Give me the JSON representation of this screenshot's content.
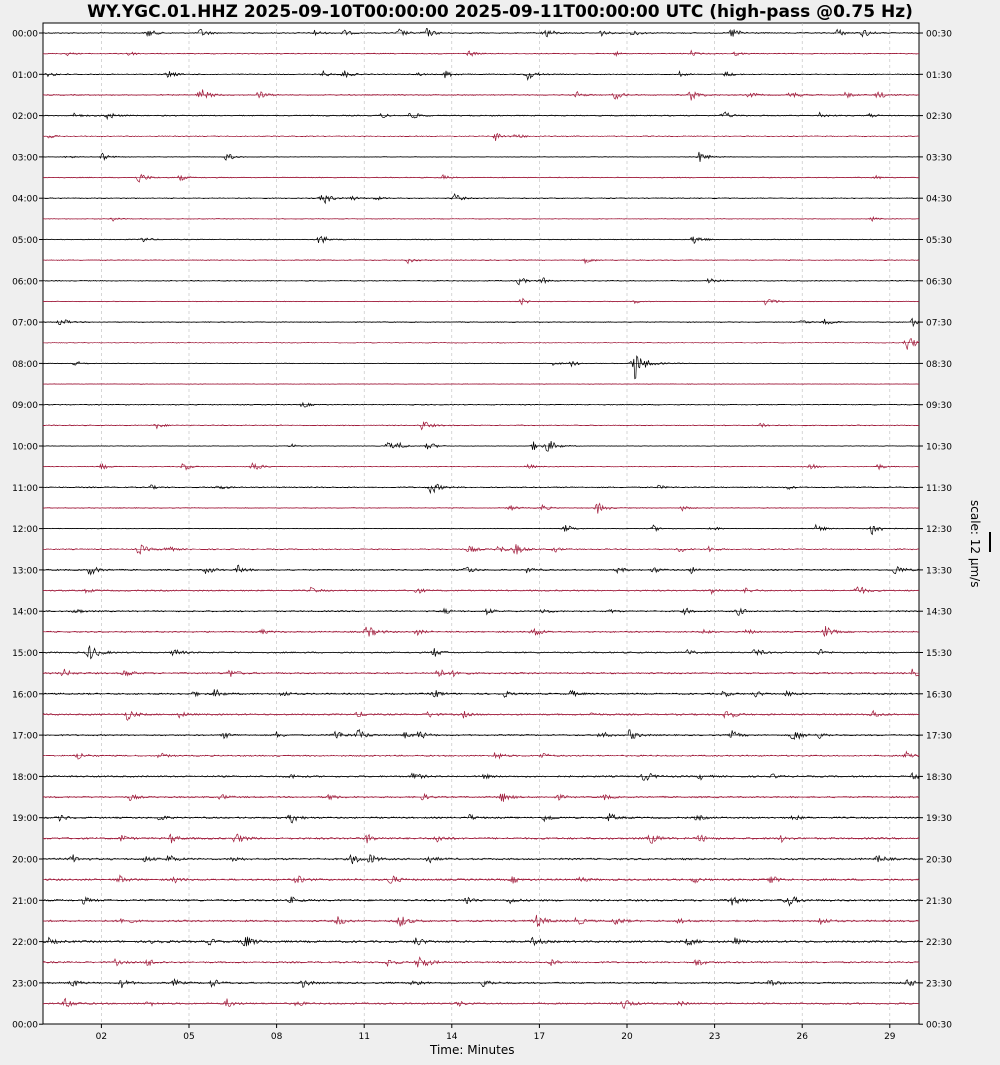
{
  "chart_data": {
    "type": "line",
    "title": "WY.YGC.01.HHZ 2025-09-10T00:00:00 2025-09-11T00:00:00 UTC (high-pass @0.75 Hz)",
    "xlabel": "Time: Minutes",
    "scale_label": "scale: 12 μm/s",
    "xlim": [
      0,
      30
    ],
    "x_ticks": [
      "02",
      "05",
      "08",
      "11",
      "14",
      "17",
      "20",
      "23",
      "26",
      "29"
    ],
    "x_tick_values": [
      2,
      5,
      8,
      11,
      14,
      17,
      20,
      23,
      26,
      29
    ],
    "grid": "vertical-dashed",
    "colors": {
      "trace_a": "#000000",
      "trace_b": "#a01c3c",
      "grid": "#bbbbbb"
    },
    "left_labels": [
      "00:00",
      "01:00",
      "02:00",
      "03:00",
      "04:00",
      "05:00",
      "06:00",
      "07:00",
      "08:00",
      "09:00",
      "10:00",
      "11:00",
      "12:00",
      "13:00",
      "14:00",
      "15:00",
      "16:00",
      "17:00",
      "18:00",
      "19:00",
      "20:00",
      "21:00",
      "22:00",
      "23:00",
      "00:00"
    ],
    "right_labels": [
      "00:30",
      "01:30",
      "02:30",
      "03:30",
      "04:30",
      "05:30",
      "06:30",
      "07:30",
      "08:30",
      "09:30",
      "10:30",
      "11:30",
      "12:30",
      "13:30",
      "14:30",
      "15:30",
      "16:30",
      "17:30",
      "18:30",
      "19:30",
      "20:30",
      "21:30",
      "22:30",
      "23:30",
      "00:30"
    ],
    "rows": 48,
    "noise_level": [
      0.25,
      0.2,
      0.2,
      0.25,
      0.25,
      0.2,
      0.15,
      0.2,
      0.2,
      0.15,
      0.2,
      0.2,
      0.2,
      0.15,
      0.2,
      0.15,
      0.15,
      0.15,
      0.2,
      0.2,
      0.15,
      0.15,
      0.25,
      0.2,
      0.15,
      0.25,
      0.3,
      0.3,
      0.3,
      0.3,
      0.3,
      0.35,
      0.35,
      0.35,
      0.3,
      0.3,
      0.35,
      0.35,
      0.35,
      0.4,
      0.4,
      0.4,
      0.4,
      0.4,
      0.45,
      0.35,
      0.35,
      0.35
    ],
    "events": [
      [
        [
          3.6,
          2
        ],
        [
          5.4,
          2
        ],
        [
          9.3,
          1.5
        ],
        [
          10.3,
          1.5
        ],
        [
          12.2,
          2
        ],
        [
          13.1,
          2.5
        ],
        [
          17.2,
          2.5
        ],
        [
          19.1,
          1.5
        ],
        [
          20.2,
          1.5
        ],
        [
          23.6,
          2.5
        ],
        [
          27.2,
          2
        ],
        [
          28.1,
          2
        ]
      ],
      [
        [
          0.8,
          1
        ],
        [
          2.9,
          1.5
        ],
        [
          14.6,
          1.5
        ],
        [
          19.6,
          1
        ],
        [
          22.2,
          1.2
        ],
        [
          23.7,
          1
        ]
      ],
      [
        [
          0.2,
          1.5
        ],
        [
          4.3,
          2
        ],
        [
          9.6,
          1.5
        ],
        [
          10.3,
          2
        ],
        [
          12.8,
          1
        ],
        [
          13.8,
          2
        ],
        [
          16.6,
          2.5
        ],
        [
          21.8,
          1.2
        ],
        [
          23.4,
          1.5
        ]
      ],
      [
        [
          5.4,
          3
        ],
        [
          7.4,
          2
        ],
        [
          18.3,
          1.5
        ],
        [
          19.6,
          2
        ],
        [
          22.2,
          2.5
        ],
        [
          24.2,
          1.5
        ],
        [
          25.6,
          2
        ],
        [
          27.5,
          1.5
        ],
        [
          28.6,
          2
        ]
      ],
      [
        [
          1.1,
          1.2
        ],
        [
          2.2,
          2
        ],
        [
          11.6,
          1.2
        ],
        [
          12.6,
          2
        ],
        [
          23.3,
          2
        ],
        [
          26.6,
          1.5
        ],
        [
          28.3,
          1
        ]
      ],
      [
        [
          0.2,
          1
        ],
        [
          15.5,
          2
        ],
        [
          16.2,
          1.5
        ]
      ],
      [
        [
          0.8,
          1
        ],
        [
          2.0,
          2
        ],
        [
          6.3,
          2
        ],
        [
          22.5,
          2.5
        ]
      ],
      [
        [
          3.3,
          2.5
        ],
        [
          4.7,
          1.5
        ],
        [
          13.7,
          1.2
        ],
        [
          28.5,
          1
        ]
      ],
      [
        [
          9.6,
          3
        ],
        [
          10.6,
          1.2
        ],
        [
          11.4,
          1
        ],
        [
          14.1,
          2
        ]
      ],
      [
        [
          2.4,
          1.2
        ],
        [
          28.4,
          1
        ]
      ],
      [
        [
          3.4,
          1.5
        ],
        [
          9.5,
          2.5
        ],
        [
          22.3,
          2.5
        ]
      ],
      [
        [
          12.5,
          1.5
        ],
        [
          18.6,
          1.5
        ]
      ],
      [
        [
          16.3,
          2
        ],
        [
          17.1,
          1.5
        ],
        [
          22.8,
          2
        ]
      ],
      [
        [
          16.4,
          1.5
        ],
        [
          20.3,
          1
        ],
        [
          24.8,
          2.5
        ]
      ],
      [
        [
          0.6,
          2
        ],
        [
          26.0,
          1.2
        ],
        [
          26.8,
          2
        ],
        [
          29.8,
          2
        ]
      ],
      [
        [
          29.6,
          3.5
        ]
      ],
      [
        [
          1.1,
          1.5
        ],
        [
          17.5,
          1.2
        ],
        [
          18.1,
          1.5
        ],
        [
          20.3,
          5
        ]
      ],
      [],
      [
        [
          8.9,
          1.5
        ]
      ],
      [
        [
          3.9,
          1.5
        ],
        [
          13.0,
          2.5
        ],
        [
          24.6,
          1.5
        ]
      ],
      [
        [
          8.5,
          1
        ],
        [
          11.8,
          2
        ],
        [
          12.2,
          1.5
        ],
        [
          13.2,
          2
        ],
        [
          17.3,
          3
        ],
        [
          16.8,
          2
        ]
      ],
      [
        [
          2.0,
          1.5
        ],
        [
          4.8,
          2
        ],
        [
          7.2,
          2.5
        ],
        [
          16.6,
          1.5
        ],
        [
          26.3,
          1.5
        ],
        [
          28.6,
          1.5
        ]
      ],
      [
        [
          3.7,
          1
        ],
        [
          6.0,
          1.5
        ],
        [
          13.3,
          3
        ],
        [
          21.1,
          1
        ],
        [
          25.5,
          1
        ]
      ],
      [
        [
          16.0,
          1.5
        ],
        [
          17.1,
          1.5
        ],
        [
          19.0,
          2.5
        ],
        [
          21.9,
          1.2
        ]
      ],
      [
        [
          17.9,
          2
        ],
        [
          20.9,
          1.5
        ],
        [
          22.9,
          1.5
        ],
        [
          26.5,
          2
        ],
        [
          28.4,
          3
        ]
      ],
      [
        [
          3.3,
          2.5
        ],
        [
          4.2,
          2
        ],
        [
          14.6,
          2
        ],
        [
          15.6,
          2
        ],
        [
          16.2,
          2.5
        ],
        [
          17.5,
          1.5
        ],
        [
          21.8,
          1.5
        ],
        [
          22.8,
          1.5
        ]
      ],
      [
        [
          1.6,
          2.5
        ],
        [
          5.6,
          2
        ],
        [
          6.7,
          2
        ],
        [
          14.5,
          2
        ],
        [
          16.6,
          1.5
        ],
        [
          19.7,
          1.5
        ],
        [
          20.9,
          1.5
        ],
        [
          22.2,
          1.5
        ],
        [
          29.2,
          2.5
        ]
      ],
      [
        [
          1.5,
          1
        ],
        [
          9.2,
          1.5
        ],
        [
          12.8,
          1.5
        ],
        [
          22.9,
          1.5
        ],
        [
          24.1,
          1.5
        ],
        [
          27.9,
          2.5
        ]
      ],
      [
        [
          1.1,
          1.5
        ],
        [
          13.7,
          1.5
        ],
        [
          15.2,
          1.5
        ],
        [
          17.1,
          1.5
        ],
        [
          19.4,
          1
        ],
        [
          22.0,
          1.5
        ],
        [
          23.8,
          2
        ]
      ],
      [
        [
          7.5,
          1.2
        ],
        [
          11.1,
          3
        ],
        [
          12.8,
          1.5
        ],
        [
          16.8,
          2.5
        ],
        [
          22.6,
          1.5
        ],
        [
          24.1,
          1.5
        ],
        [
          26.8,
          2.5
        ]
      ],
      [
        [
          1.6,
          3.5
        ],
        [
          4.5,
          2
        ],
        [
          13.4,
          2
        ],
        [
          22.1,
          1.5
        ],
        [
          24.4,
          2
        ],
        [
          26.6,
          1.5
        ]
      ],
      [
        [
          0.7,
          2
        ],
        [
          2.8,
          2
        ],
        [
          6.4,
          2
        ],
        [
          13.5,
          2.5
        ],
        [
          14.1,
          1.5
        ],
        [
          29.8,
          2
        ]
      ],
      [
        [
          5.1,
          1.5
        ],
        [
          5.9,
          2
        ],
        [
          8.2,
          1.5
        ],
        [
          13.4,
          2
        ],
        [
          15.8,
          1.5
        ],
        [
          18.1,
          1.5
        ],
        [
          23.3,
          1.5
        ],
        [
          24.4,
          1.5
        ],
        [
          25.5,
          1.5
        ]
      ],
      [
        [
          2.9,
          2.5
        ],
        [
          4.7,
          1.5
        ],
        [
          10.8,
          1.5
        ],
        [
          13.2,
          1.5
        ],
        [
          14.4,
          1.5
        ],
        [
          18.8,
          1
        ],
        [
          23.4,
          2.5
        ],
        [
          28.4,
          2
        ]
      ],
      [
        [
          6.2,
          1.5
        ],
        [
          8.0,
          1.5
        ],
        [
          10.0,
          2.5
        ],
        [
          10.8,
          2.5
        ],
        [
          12.4,
          1.5
        ],
        [
          12.9,
          2
        ],
        [
          19.1,
          2
        ],
        [
          20.1,
          2.5
        ],
        [
          23.6,
          2
        ],
        [
          25.7,
          3
        ],
        [
          26.6,
          1.5
        ]
      ],
      [
        [
          1.2,
          2
        ],
        [
          4.0,
          1.5
        ],
        [
          15.5,
          2
        ],
        [
          17.1,
          1.5
        ],
        [
          29.6,
          2.5
        ]
      ],
      [
        [
          8.5,
          1.2
        ],
        [
          12.7,
          2
        ],
        [
          15.1,
          1.2
        ],
        [
          20.6,
          2.5
        ],
        [
          22.5,
          1.5
        ],
        [
          25.0,
          1
        ],
        [
          29.8,
          1.5
        ]
      ],
      [
        [
          3.0,
          1.5
        ],
        [
          6.1,
          1.5
        ],
        [
          9.8,
          1.5
        ],
        [
          13.0,
          1.5
        ],
        [
          15.7,
          2.5
        ],
        [
          17.6,
          1.5
        ],
        [
          19.2,
          1.5
        ]
      ],
      [
        [
          0.6,
          1.5
        ],
        [
          4.0,
          1.5
        ],
        [
          8.5,
          2.5
        ],
        [
          14.6,
          1.5
        ],
        [
          17.2,
          2
        ],
        [
          19.4,
          2
        ],
        [
          22.4,
          1.5
        ],
        [
          25.7,
          1.5
        ]
      ],
      [
        [
          2.7,
          1.5
        ],
        [
          4.4,
          2
        ],
        [
          6.6,
          2.5
        ],
        [
          11.1,
          2
        ],
        [
          13.5,
          2
        ],
        [
          20.8,
          2.5
        ],
        [
          22.5,
          2
        ],
        [
          25.3,
          1.5
        ]
      ],
      [
        [
          1.0,
          2
        ],
        [
          3.5,
          1.5
        ],
        [
          4.3,
          2
        ],
        [
          6.5,
          1.5
        ],
        [
          10.6,
          2.5
        ],
        [
          11.2,
          2
        ],
        [
          13.2,
          2
        ],
        [
          28.6,
          2
        ]
      ],
      [
        [
          2.6,
          2
        ],
        [
          4.5,
          1.5
        ],
        [
          8.7,
          2
        ],
        [
          11.9,
          2.5
        ],
        [
          16.1,
          1.5
        ],
        [
          18.4,
          1.5
        ],
        [
          22.3,
          1.5
        ],
        [
          24.9,
          2
        ]
      ],
      [
        [
          1.4,
          1.5
        ],
        [
          8.5,
          1.5
        ],
        [
          14.5,
          2
        ],
        [
          16.0,
          1.5
        ],
        [
          23.6,
          2.5
        ],
        [
          25.5,
          3
        ]
      ],
      [
        [
          2.7,
          2
        ],
        [
          10.1,
          2
        ],
        [
          12.2,
          3
        ],
        [
          16.9,
          3
        ],
        [
          18.3,
          2
        ],
        [
          19.6,
          2
        ],
        [
          21.8,
          1.5
        ],
        [
          26.6,
          2
        ]
      ],
      [
        [
          0.2,
          1.5
        ],
        [
          3.8,
          1.5
        ],
        [
          5.7,
          1.5
        ],
        [
          6.9,
          3
        ],
        [
          12.8,
          2
        ],
        [
          16.8,
          2
        ],
        [
          22.1,
          2
        ],
        [
          23.7,
          1.5
        ]
      ],
      [
        [
          2.5,
          1.5
        ],
        [
          3.6,
          2
        ],
        [
          11.8,
          2
        ],
        [
          12.9,
          3.5
        ],
        [
          17.4,
          1.5
        ],
        [
          22.4,
          2
        ]
      ],
      [
        [
          1.0,
          2
        ],
        [
          2.7,
          2
        ],
        [
          4.5,
          1.5
        ],
        [
          5.8,
          2
        ],
        [
          8.9,
          2
        ],
        [
          12.7,
          2
        ],
        [
          15.1,
          2
        ],
        [
          24.9,
          2
        ],
        [
          29.6,
          2
        ]
      ],
      [
        [
          0.8,
          2.5
        ],
        [
          3.6,
          1.5
        ],
        [
          6.3,
          2
        ],
        [
          8.7,
          1.5
        ],
        [
          14.2,
          1.5
        ],
        [
          19.9,
          2.5
        ],
        [
          21.8,
          1.2
        ]
      ]
    ]
  }
}
